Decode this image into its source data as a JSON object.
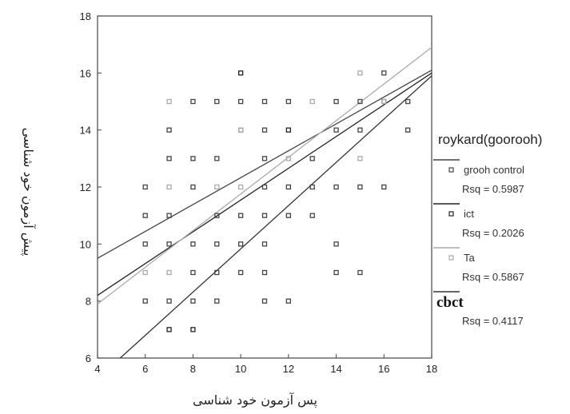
{
  "chart_data": {
    "type": "scatter",
    "xlabel": "پس آزمون خود شناسی",
    "ylabel": "پیش آزمون خود شناسی",
    "xlim": [
      4,
      18
    ],
    "ylim": [
      6,
      18
    ],
    "xticks": [
      4,
      6,
      8,
      10,
      12,
      14,
      16,
      18
    ],
    "yticks": [
      6,
      8,
      10,
      12,
      14,
      16,
      18
    ],
    "grid": false,
    "legend_position": "right",
    "legend_title": "roykard(goorooh)",
    "series": [
      {
        "name": "grooh control",
        "rsq_label": "Rsq = 0.5987",
        "color": "#444444",
        "bold_name": false,
        "fit_line": [
          [
            4,
            9.5
          ],
          [
            18,
            16.1
          ]
        ],
        "points": [
          [
            6,
            12
          ],
          [
            6,
            11
          ],
          [
            6,
            10
          ],
          [
            6,
            8
          ],
          [
            7,
            14
          ],
          [
            7,
            13
          ],
          [
            7,
            11
          ],
          [
            7,
            10
          ],
          [
            7,
            8
          ],
          [
            8,
            15
          ],
          [
            8,
            13
          ],
          [
            8,
            12
          ],
          [
            8,
            10
          ],
          [
            8,
            9
          ],
          [
            8,
            8
          ],
          [
            9,
            15
          ],
          [
            9,
            13
          ],
          [
            9,
            11
          ],
          [
            9,
            10
          ],
          [
            9,
            9
          ],
          [
            9,
            8
          ],
          [
            10,
            15
          ],
          [
            10,
            14
          ],
          [
            10,
            11
          ],
          [
            10,
            10
          ],
          [
            10,
            9
          ],
          [
            11,
            15
          ],
          [
            11,
            14
          ],
          [
            11,
            13
          ],
          [
            11,
            12
          ],
          [
            11,
            11
          ],
          [
            11,
            10
          ],
          [
            11,
            9
          ],
          [
            11,
            8
          ],
          [
            12,
            15
          ],
          [
            12,
            12
          ],
          [
            12,
            11
          ],
          [
            12,
            8
          ],
          [
            13,
            13
          ],
          [
            13,
            12
          ],
          [
            13,
            11
          ],
          [
            14,
            15
          ],
          [
            14,
            14
          ],
          [
            14,
            12
          ],
          [
            14,
            10
          ],
          [
            14,
            9
          ],
          [
            15,
            15
          ],
          [
            15,
            14
          ],
          [
            15,
            12
          ],
          [
            15,
            9
          ],
          [
            16,
            16
          ],
          [
            16,
            15
          ],
          [
            16,
            12
          ],
          [
            17,
            15
          ],
          [
            17,
            14
          ]
        ]
      },
      {
        "name": "ict",
        "rsq_label": "Rsq = 0.2026",
        "color": "#222222",
        "bold_name": false,
        "fit_line": [
          [
            4,
            8.2
          ],
          [
            18,
            16.0
          ]
        ],
        "points": [
          [
            7,
            7
          ],
          [
            8,
            7
          ],
          [
            10,
            16
          ],
          [
            12,
            14
          ]
        ]
      },
      {
        "name": "Ta",
        "rsq_label": "Rsq = 0.5867",
        "color": "#aaaaaa",
        "bold_name": false,
        "fit_line": [
          [
            4,
            7.9
          ],
          [
            18,
            16.9
          ]
        ],
        "points": [
          [
            6,
            9
          ],
          [
            7,
            15
          ],
          [
            7,
            12
          ],
          [
            7,
            9
          ],
          [
            9,
            12
          ],
          [
            10,
            14
          ],
          [
            10,
            12
          ],
          [
            12,
            13
          ],
          [
            13,
            15
          ],
          [
            15,
            16
          ],
          [
            15,
            13
          ],
          [
            16,
            15
          ]
        ]
      },
      {
        "name": "cbct",
        "rsq_label": "Rsq = 0.4117",
        "color": "#333333",
        "bold_name": true,
        "fit_line": [
          [
            4.95,
            6.0
          ],
          [
            18,
            15.9
          ]
        ],
        "points": []
      }
    ]
  }
}
